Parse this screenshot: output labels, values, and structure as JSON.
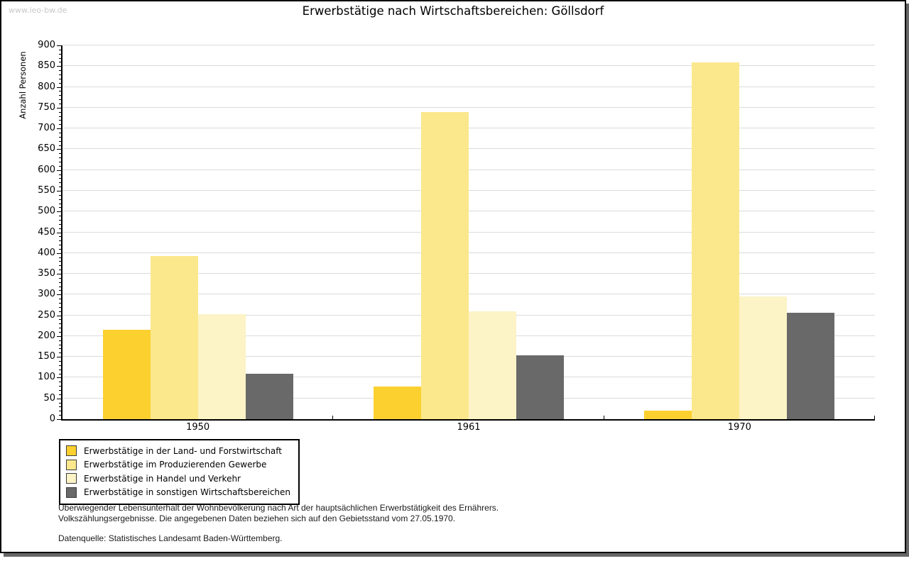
{
  "watermark": "www.leo-bw.de",
  "title": "Erwerbstätige nach Wirtschaftsbereichen: Göllsdorf",
  "chart_data": {
    "type": "bar",
    "title": "Erwerbstätige nach Wirtschaftsbereichen: Göllsdorf",
    "xlabel": "",
    "ylabel": "Anzahl Personen",
    "ylim": [
      0,
      900
    ],
    "ytick_step": 50,
    "yminor_tick_step": 10,
    "grid": true,
    "legend_position": "bottom-left",
    "categories": [
      "1950",
      "1961",
      "1970"
    ],
    "series": [
      {
        "name": "Erwerbstätige in der Land- und Forstwirtschaft",
        "color": "#FCD02F",
        "values": [
          215,
          78,
          21
        ]
      },
      {
        "name": "Erwerbstätige im Produzierenden Gewerbe",
        "color": "#FBE88D",
        "values": [
          392,
          739,
          859
        ]
      },
      {
        "name": "Erwerbstätige in Handel und Verkehr",
        "color": "#FCF3C6",
        "values": [
          252,
          260,
          295
        ]
      },
      {
        "name": "Erwerbstätige in sonstigen Wirtschaftsbereichen",
        "color": "#696969",
        "values": [
          109,
          153,
          256
        ]
      }
    ]
  },
  "footer": {
    "line1": "Überwiegender Lebensunterhalt der Wohnbevölkerung nach Art der hauptsächlichen Erwerbstätigkeit des Ernährers.",
    "line2": "Volkszählungsergebnisse. Die angegebenen Daten beziehen sich auf den Gebietsstand vom 27.05.1970.",
    "source": "Datenquelle: Statistisches Landesamt Baden-Württemberg."
  },
  "colors": {
    "gridline": "#dbdbdb",
    "axis": "#000000",
    "watermark": "#c8c8c8",
    "frame_shadow": "#666666",
    "background": "#ffffff"
  }
}
